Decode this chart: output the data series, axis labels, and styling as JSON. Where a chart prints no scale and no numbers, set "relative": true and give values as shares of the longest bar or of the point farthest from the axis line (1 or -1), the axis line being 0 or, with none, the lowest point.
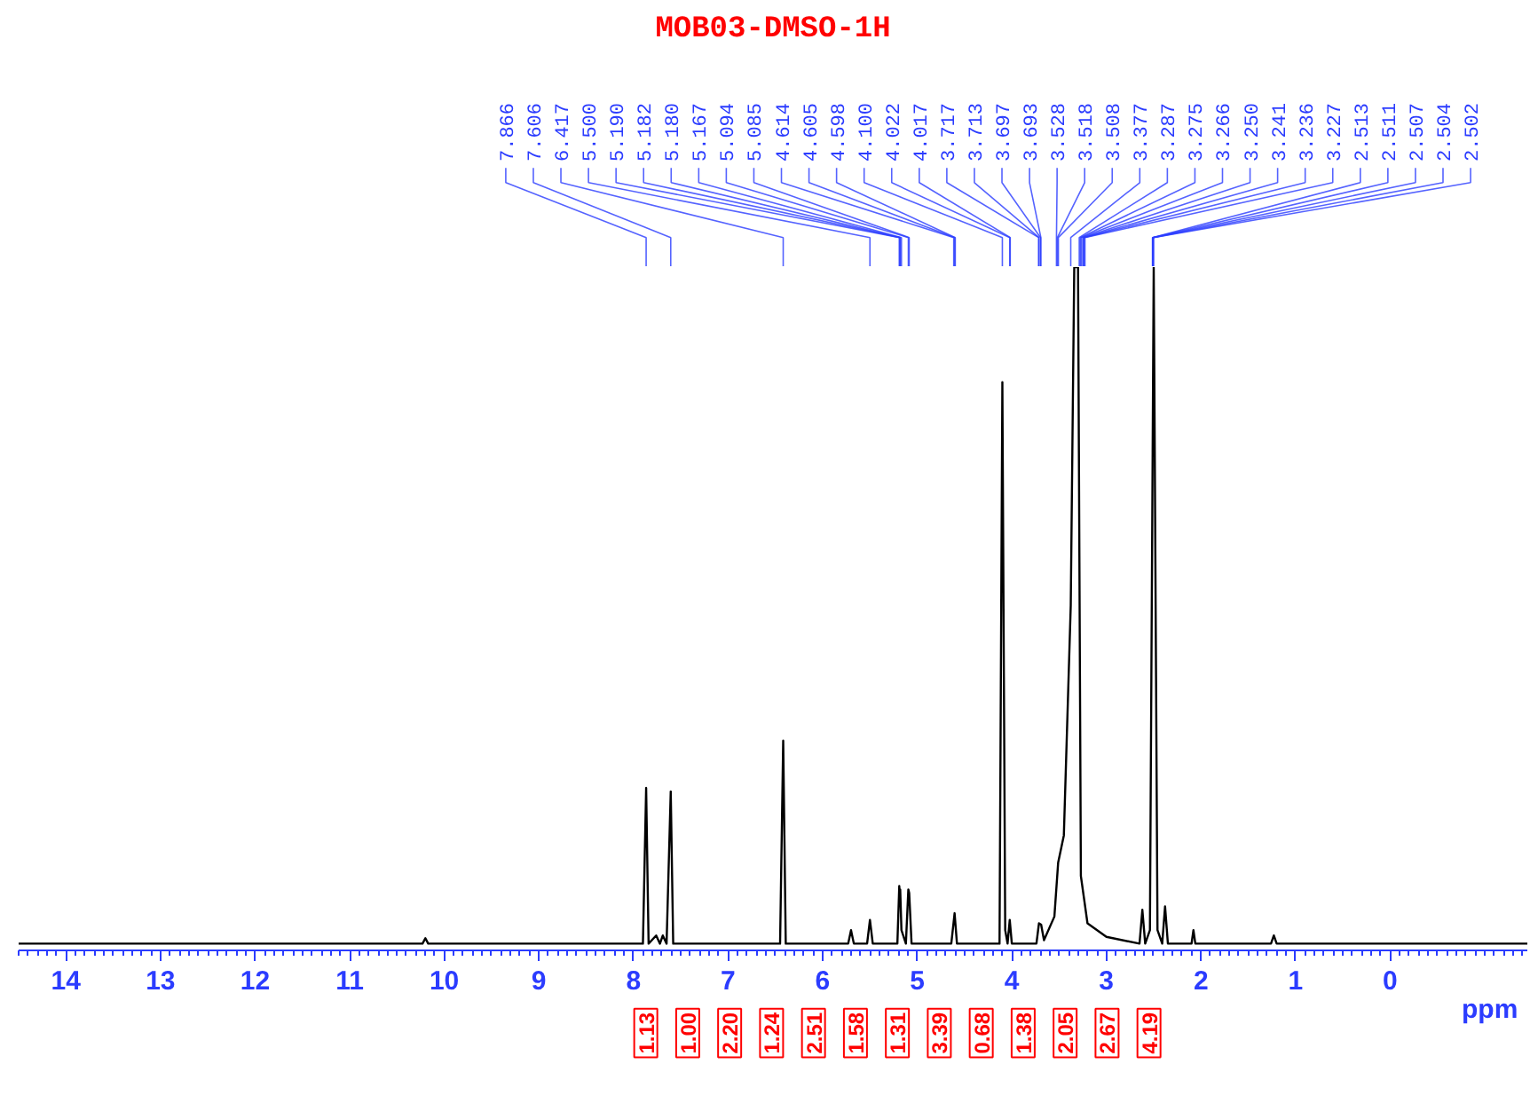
{
  "chart_data": {
    "type": "line",
    "title": "MOB03-DMSO-1H",
    "xlabel": "ppm",
    "relative": true,
    "color": "#000000",
    "xlim": [
      14.5,
      -1.45
    ],
    "xticks": [
      14,
      13,
      12,
      11,
      10,
      9,
      8,
      7,
      6,
      5,
      4,
      3,
      2,
      1,
      0
    ],
    "grid": false,
    "marker": "none",
    "line_style": "solid",
    "x": [
      14.5,
      10.23,
      10.2,
      10.17,
      7.9,
      7.866,
      7.84,
      7.76,
      7.72,
      7.69,
      7.65,
      7.606,
      7.58,
      6.45,
      6.417,
      6.39,
      5.73,
      5.7,
      5.67,
      5.53,
      5.5,
      5.47,
      5.21,
      5.19,
      5.182,
      5.18,
      5.167,
      5.12,
      5.094,
      5.085,
      5.06,
      4.64,
      4.605,
      4.58,
      4.13,
      4.1,
      4.07,
      4.045,
      4.022,
      4.0,
      3.74,
      3.713,
      3.69,
      3.66,
      3.55,
      3.51,
      3.45,
      3.377,
      3.34,
      3.3,
      3.27,
      3.24,
      3.2,
      3.0,
      2.65,
      2.62,
      2.59,
      2.54,
      2.5,
      2.46,
      2.41,
      2.38,
      2.35,
      2.1,
      2.08,
      2.06,
      1.26,
      1.23,
      1.2,
      -1.45
    ],
    "values": [
      0,
      0,
      0.008,
      0,
      0,
      0.23,
      0,
      0.012,
      0,
      0.012,
      0,
      0.225,
      0,
      0,
      0.3,
      0,
      0,
      0.02,
      0,
      0,
      0.035,
      0,
      0,
      0.085,
      0.07,
      0.08,
      0.02,
      0,
      0.08,
      0.075,
      0,
      0,
      0.045,
      0,
      0,
      0.83,
      0.02,
      0,
      0.035,
      0,
      0,
      0.03,
      0.028,
      0.005,
      0.04,
      0.12,
      0.16,
      0.5,
      1,
      1,
      0.1,
      0.07,
      0.03,
      0.01,
      0,
      0.05,
      0,
      0.02,
      1,
      0.02,
      0,
      0.055,
      0,
      0,
      0.02,
      0,
      0,
      0.012,
      0,
      0
    ],
    "annotations": [
      "7.866",
      "7.606",
      "6.417",
      "5.500",
      "5.190",
      "5.182",
      "5.180",
      "5.167",
      "5.094",
      "5.085",
      "4.614",
      "4.605",
      "4.598",
      "4.100",
      "4.022",
      "4.017",
      "3.717",
      "3.713",
      "3.697",
      "3.693",
      "3.528",
      "3.518",
      "3.508",
      "3.377",
      "3.287",
      "3.275",
      "3.266",
      "3.250",
      "3.241",
      "3.236",
      "3.227",
      "2.513",
      "2.511",
      "2.507",
      "2.504",
      "2.502",
      "1.13",
      "1.00",
      "2.20",
      "1.24",
      "2.51",
      "1.58",
      "1.31",
      "3.39",
      "0.68",
      "1.38",
      "2.05",
      "2.67",
      "4.19"
    ]
  }
}
